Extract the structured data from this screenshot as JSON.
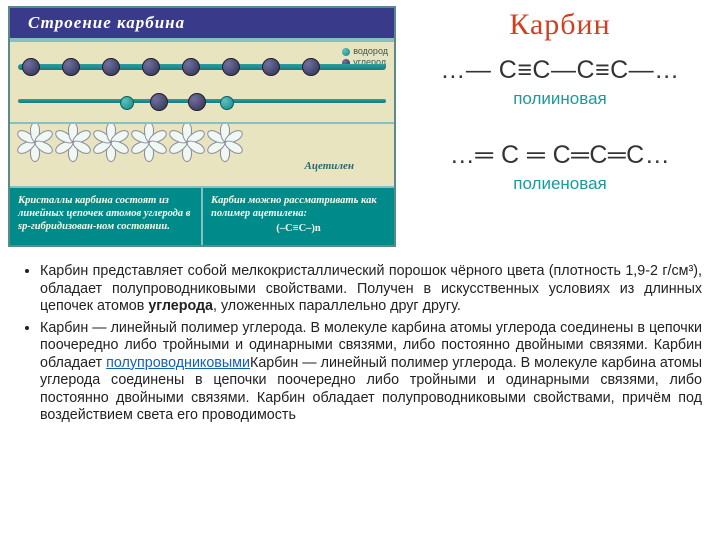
{
  "title": "Карбин",
  "panel": {
    "heading": "Строение карбина",
    "legend": {
      "hydrogen": "водород",
      "carbon": "углерод"
    },
    "acetylene_label": "Ацетилен",
    "left_note": "Кристаллы карбина состоят из линейных цепочек атомов углерода в sp-гибридизован-ном состоянии.",
    "right_note": "Карбин можно рассматривать как полимер ацетилена:",
    "polymer_formula": "(–C≡C–)n",
    "colors": {
      "panel_border": "#5a8a8a",
      "panel_accent": "#88c0c0",
      "panel_bg_dark": "#008b8b",
      "panel_bg_light": "#e8e4c0",
      "title_bg": "#3a3a8a"
    }
  },
  "formulas": {
    "polyyne": "…― С≡С―С≡С―…",
    "polyyne_label": "полииновая",
    "polyene": "…═ С ═ С═С═С…",
    "polyene_label": "полиеновая"
  },
  "paragraphs": {
    "p1": "Карбин представляет собой мелкокристаллический порошок чёрного цвета (плотность 1,9-2 г/см³), обладает полупроводниковыми свойствами. Получен в искусственных условиях из длинных цепочек атомов углерода, уложенных параллельно друг другу.",
    "p1_bold": "углерода",
    "p2a": "Карбин — линейный полимер углерода. В молекуле карбина атомы углерода соединены в цепочки поочередно либо тройными и одинарными связями, либо постоянно двойными связями. Карбин обладает ",
    "p2link": "полупроводниковыми",
    "p2b": "Карбин — линейный полимер углерода. В молекуле карбина атомы углерода соединены в цепочки поочередно либо тройными и одинарными связями, либо постоянно двойными связями. Карбин обладает полупроводниковыми свойствами, причём под воздействием света его проводимость"
  }
}
